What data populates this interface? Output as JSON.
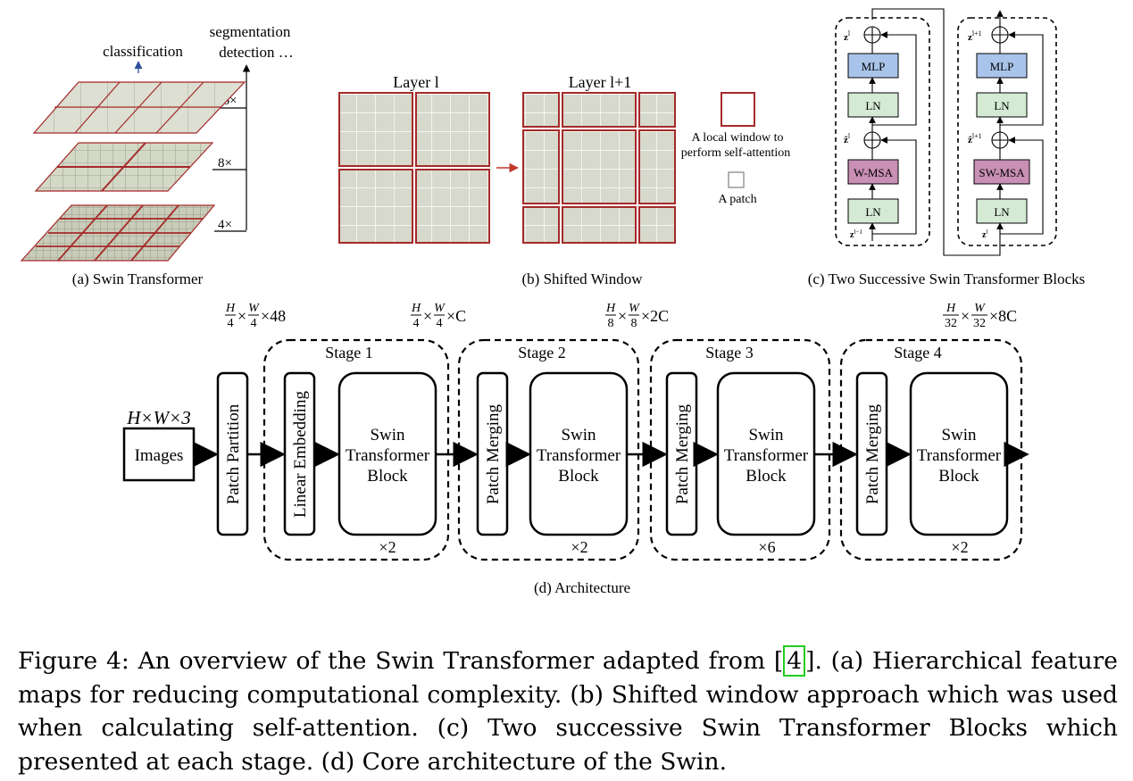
{
  "panel_a": {
    "label_classification": "classification",
    "label_segmentation": "segmentation",
    "label_detection": "detection …",
    "scale_16": "16×",
    "scale_8": "8×",
    "scale_4": "4×",
    "caption": "(a) Swin Transformer"
  },
  "panel_b": {
    "layer_l": "Layer l",
    "layer_l1": "Layer l+1",
    "legend_window_line1": "A local window to",
    "legend_window_line2": "perform self-attention",
    "legend_patch": "A patch",
    "caption": "(b) Shifted Window"
  },
  "panel_c": {
    "block1": {
      "msa": "W-MSA",
      "ln": "LN",
      "mlp": "MLP"
    },
    "block2": {
      "msa": "SW-MSA",
      "ln": "LN",
      "mlp": "MLP"
    },
    "caption": "(c) Two Successive Swin Transformer Blocks"
  },
  "panel_d": {
    "input_dims": "H×W×3",
    "images": "Images",
    "patch_partition": "Patch Partition",
    "linear_embedding": "Linear Embedding",
    "patch_merging": "Patch Merging",
    "swin_block_line1": "Swin",
    "swin_block_line2": "Transformer",
    "swin_block_line3": "Block",
    "stages": [
      {
        "name": "Stage 1",
        "repeat": "×2"
      },
      {
        "name": "Stage 2",
        "repeat": "×2"
      },
      {
        "name": "Stage 3",
        "repeat": "×6"
      },
      {
        "name": "Stage 4",
        "repeat": "×2"
      }
    ],
    "dims": [
      {
        "num1": "H",
        "den1": "4",
        "num2": "W",
        "den2": "4",
        "tail": "×48"
      },
      {
        "num1": "H",
        "den1": "4",
        "num2": "W",
        "den2": "4",
        "tail": "×C"
      },
      {
        "num1": "H",
        "den1": "8",
        "num2": "W",
        "den2": "8",
        "tail": "×2C"
      },
      {
        "num1": "H",
        "den1": "32",
        "num2": "W",
        "den2": "32",
        "tail": "×8C"
      }
    ],
    "caption": "(d) Architecture"
  },
  "figure_caption": {
    "before_ref": "Figure 4: An overview of the Swin Transformer adapted from [",
    "ref": "4",
    "after_ref": "]. (a) Hierarchical feature maps for reducing computational complexity. (b) Shifted window approach which was used when calculating self-attention. (c) Two successive Swin Transformer Blocks which presented at each stage. (d) Core architecture of the Swin."
  },
  "colors": {
    "window_border": "#a52a2a",
    "mlp_fill": "#a9c4ea",
    "ln_fill": "#d4ead4",
    "msa_fill": "#c98fb5",
    "photo_fill": "#d9dcd0"
  }
}
